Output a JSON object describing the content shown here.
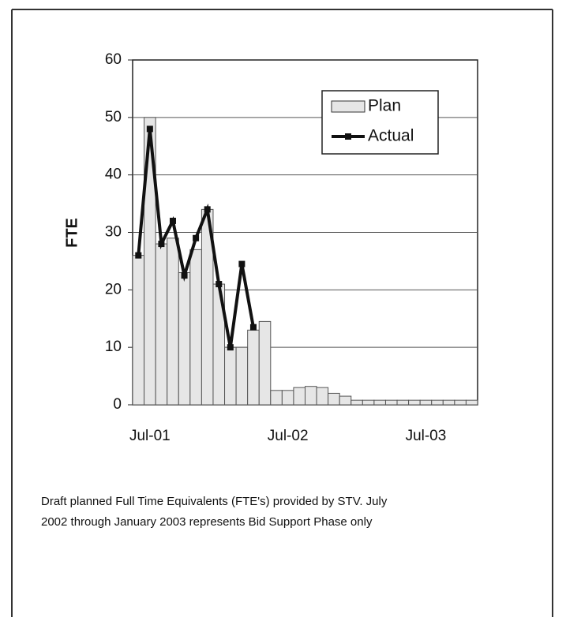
{
  "chart_data": {
    "type": "bar_line",
    "y_label": "FTE",
    "categories": [
      null,
      "Jul-01",
      null,
      null,
      null,
      null,
      null,
      null,
      null,
      null,
      null,
      null,
      null,
      "Jul-02",
      null,
      null,
      null,
      null,
      null,
      null,
      null,
      null,
      null,
      null,
      null,
      "Jul-03",
      null,
      null,
      null,
      null
    ],
    "series": [
      {
        "name": "Plan",
        "kind": "bar",
        "color": "#e6e6e6",
        "values": [
          26,
          50,
          28,
          29,
          23,
          27,
          34,
          21,
          10,
          10,
          13,
          14.5,
          2.5,
          2.5,
          3,
          3.2,
          3,
          2,
          1.5,
          0.8,
          0.8,
          0.8,
          0.8,
          0.8,
          0.8,
          0.8,
          0.8,
          0.8,
          0.8,
          0.8
        ]
      },
      {
        "name": "Actual",
        "kind": "line",
        "color": "#111111",
        "values": [
          26,
          48,
          28,
          32,
          22.5,
          29,
          34,
          21,
          10,
          24.5,
          13.5,
          null,
          null,
          null,
          null,
          null,
          null,
          null,
          null,
          null,
          null,
          null,
          null,
          null,
          null,
          null,
          null,
          null,
          null,
          null
        ]
      }
    ],
    "ylim": [
      0,
      60
    ],
    "yticks": [
      0,
      10,
      20,
      30,
      40,
      50,
      60
    ],
    "grid": true,
    "legend": "upper right",
    "annotations": [
      "Draft planned Full Time Equivalents (FTE's) provided by STV. July",
      "2002 through January 2003 represents Bid Support Phase only"
    ]
  }
}
